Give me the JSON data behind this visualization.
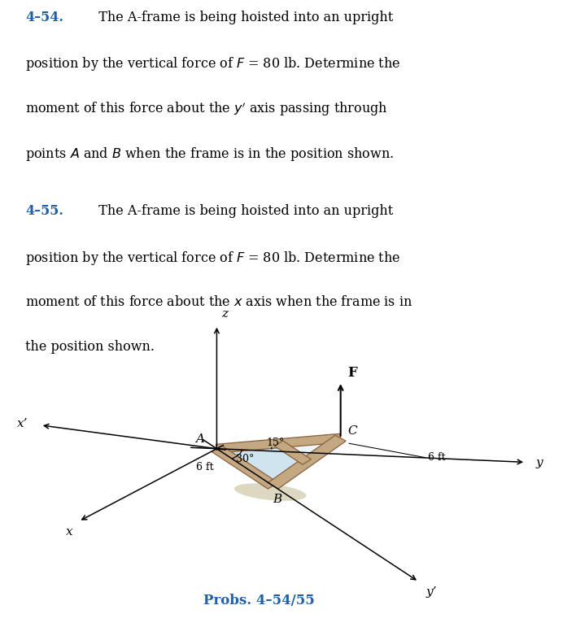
{
  "title_454": "4–54.",
  "title_455": "4–55.",
  "bg_color": "#ffffff",
  "text_color": "#000000",
  "blue_color": "#2060a8",
  "beam_color": "#c4a882",
  "beam_edge_color": "#8b6040",
  "face_color": "#b8d8e8",
  "face_alpha": 0.55,
  "shadow_color": "#ccc4a0",
  "caption": "Probs. 4–54/55",
  "label_A": "A",
  "label_B": "B",
  "label_C": "C",
  "label_F": "F",
  "label_x": "x",
  "label_xp": "x’",
  "label_y": "y",
  "label_yp": "y’",
  "label_z": "z",
  "dim_6ft": "6 ft",
  "angle_30_label": "30°",
  "angle_15_label": "15°",
  "font_size_body": 11.5,
  "font_size_diagram": 11,
  "font_size_caption": 12
}
